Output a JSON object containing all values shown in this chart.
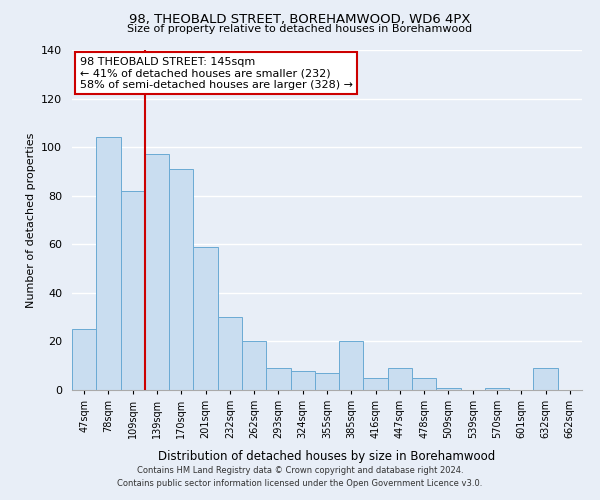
{
  "title1": "98, THEOBALD STREET, BOREHAMWOOD, WD6 4PX",
  "title2": "Size of property relative to detached houses in Borehamwood",
  "xlabel": "Distribution of detached houses by size in Borehamwood",
  "ylabel": "Number of detached properties",
  "bar_labels": [
    "47sqm",
    "78sqm",
    "109sqm",
    "139sqm",
    "170sqm",
    "201sqm",
    "232sqm",
    "262sqm",
    "293sqm",
    "324sqm",
    "355sqm",
    "385sqm",
    "416sqm",
    "447sqm",
    "478sqm",
    "509sqm",
    "539sqm",
    "570sqm",
    "601sqm",
    "632sqm",
    "662sqm"
  ],
  "bar_values": [
    25,
    104,
    82,
    97,
    91,
    59,
    30,
    20,
    9,
    8,
    7,
    20,
    5,
    9,
    5,
    1,
    0,
    1,
    0,
    9,
    0
  ],
  "bar_color": "#c9ddf0",
  "bar_edge_color": "#6aaad4",
  "vline_color": "#cc0000",
  "annotation_title": "98 THEOBALD STREET: 145sqm",
  "annotation_line1": "← 41% of detached houses are smaller (232)",
  "annotation_line2": "58% of semi-detached houses are larger (328) →",
  "annotation_box_color": "#ffffff",
  "annotation_box_edge": "#cc0000",
  "ylim": [
    0,
    140
  ],
  "yticks": [
    0,
    20,
    40,
    60,
    80,
    100,
    120,
    140
  ],
  "footer1": "Contains HM Land Registry data © Crown copyright and database right 2024.",
  "footer2": "Contains public sector information licensed under the Open Government Licence v3.0.",
  "bg_color": "#e8eef7",
  "plot_bg_color": "#e8eef7"
}
